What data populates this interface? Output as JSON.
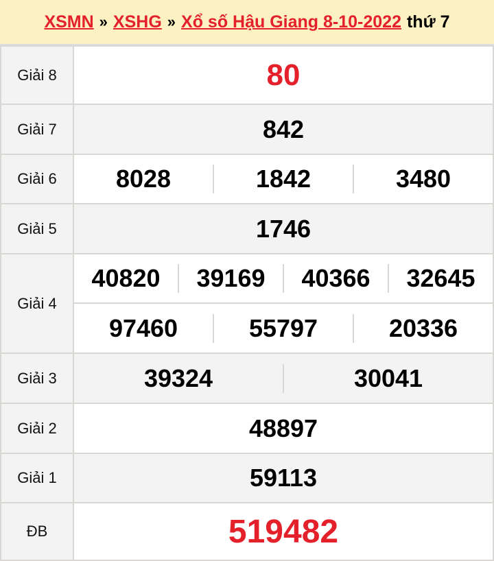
{
  "header": {
    "link1": "XSMN",
    "sep": "»",
    "link2": "XSHG",
    "link3": "Xổ số Hậu Giang 8-10-2022",
    "day": "thứ 7"
  },
  "prizes": {
    "g8": {
      "label": "Giải 8",
      "values": [
        "80"
      ]
    },
    "g7": {
      "label": "Giải 7",
      "values": [
        "842"
      ]
    },
    "g6": {
      "label": "Giải 6",
      "values": [
        "8028",
        "1842",
        "3480"
      ]
    },
    "g5": {
      "label": "Giải 5",
      "values": [
        "1746"
      ]
    },
    "g4": {
      "label": "Giải 4",
      "values": [
        "40820",
        "39169",
        "40366",
        "32645",
        "97460",
        "55797",
        "20336"
      ]
    },
    "g3": {
      "label": "Giải 3",
      "values": [
        "39324",
        "30041"
      ]
    },
    "g2": {
      "label": "Giải 2",
      "values": [
        "48897"
      ]
    },
    "g1": {
      "label": "Giải 1",
      "values": [
        "59113"
      ]
    },
    "db": {
      "label": "ĐB",
      "values": [
        "519482"
      ]
    }
  },
  "colors": {
    "accent": "#e4202a",
    "header_bg": "#fcf1c2"
  }
}
